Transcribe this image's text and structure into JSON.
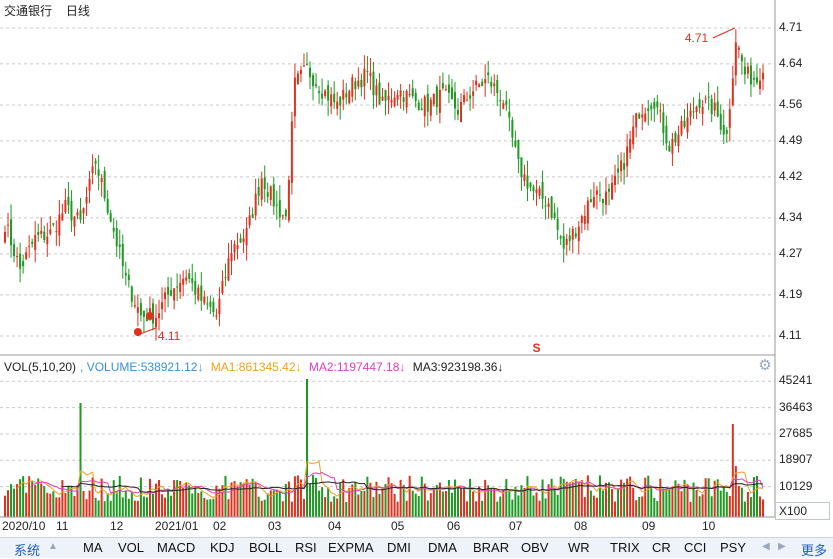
{
  "header": {
    "stock_name": "交通银行",
    "period": "日线"
  },
  "indicator_header": {
    "vol": "VOL(5,10,20)",
    "volume": ", VOLUME:538921.12↓",
    "ma1": "MA1:861345.42↓",
    "ma2": "MA2:1197447.18↓",
    "ma3": "MA3:923198.36↓"
  },
  "colors": {
    "up": "#e0301e",
    "down": "#1c9a22",
    "grid": "#c8c8c8",
    "volume_label": "#3b8fd9",
    "ma1": "#f0a020",
    "ma2": "#e040c0",
    "ma3": "#222222"
  },
  "price_axis": [
    "4.71",
    "4.64",
    "4.56",
    "4.49",
    "4.42",
    "4.34",
    "4.27",
    "4.19",
    "4.11"
  ],
  "volume_axis": [
    "45241",
    "36463",
    "27685",
    "18907",
    "10129"
  ],
  "volume_unit": "X100",
  "annotations": {
    "high": "4.71",
    "low": "4.11",
    "signal": "S"
  },
  "date_axis": [
    "2020/10",
    "11",
    "12",
    "2021/01",
    "02",
    "03",
    "04",
    "05",
    "06",
    "07",
    "08",
    "09",
    "10"
  ],
  "tabs": [
    "系统",
    "MA",
    "VOL",
    "MACD",
    "KDJ",
    "BOLL",
    "RSI",
    "EXPMA",
    "DMI",
    "DMA",
    "BRAR",
    "OBV",
    "WR",
    "TRIX",
    "CR",
    "CCI",
    "PSY"
  ],
  "more_label": "更多",
  "chart_data": {
    "type": "candlestick",
    "title": "交通银行 日线",
    "ylim": [
      4.07,
      4.74
    ],
    "volume_ylim": [
      0,
      48000
    ],
    "months": [
      "2020/10",
      "11",
      "12",
      "2021/01",
      "02",
      "03",
      "04",
      "05",
      "06",
      "07",
      "08",
      "09",
      "10"
    ],
    "close_anchors": [
      [
        0,
        4.33
      ],
      [
        5,
        4.24
      ],
      [
        10,
        4.3
      ],
      [
        15,
        4.31
      ],
      [
        20,
        4.36
      ],
      [
        25,
        4.33
      ],
      [
        30,
        4.45
      ],
      [
        35,
        4.34
      ],
      [
        40,
        4.22
      ],
      [
        45,
        4.15
      ],
      [
        50,
        4.15
      ],
      [
        55,
        4.2
      ],
      [
        60,
        4.23
      ],
      [
        65,
        4.18
      ],
      [
        70,
        4.15
      ],
      [
        75,
        4.28
      ],
      [
        80,
        4.31
      ],
      [
        85,
        4.42
      ],
      [
        90,
        4.36
      ],
      [
        93,
        4.34
      ],
      [
        96,
        4.6
      ],
      [
        100,
        4.63
      ],
      [
        105,
        4.59
      ],
      [
        110,
        4.56
      ],
      [
        115,
        4.6
      ],
      [
        120,
        4.62
      ],
      [
        125,
        4.56
      ],
      [
        130,
        4.59
      ],
      [
        135,
        4.57
      ],
      [
        140,
        4.56
      ],
      [
        145,
        4.58
      ],
      [
        150,
        4.55
      ],
      [
        155,
        4.59
      ],
      [
        160,
        4.61
      ],
      [
        165,
        4.57
      ],
      [
        170,
        4.44
      ],
      [
        175,
        4.39
      ],
      [
        180,
        4.37
      ],
      [
        185,
        4.28
      ],
      [
        190,
        4.33
      ],
      [
        195,
        4.39
      ],
      [
        200,
        4.38
      ],
      [
        205,
        4.45
      ],
      [
        210,
        4.55
      ],
      [
        215,
        4.57
      ],
      [
        220,
        4.48
      ],
      [
        225,
        4.52
      ],
      [
        230,
        4.57
      ],
      [
        235,
        4.55
      ],
      [
        239,
        4.5
      ],
      [
        242,
        4.69
      ],
      [
        245,
        4.62
      ],
      [
        249,
        4.61
      ],
      [
        251,
        4.64
      ]
    ],
    "volume_spikes": [
      [
        25,
        38000
      ],
      [
        58,
        12000
      ],
      [
        100,
        46000
      ],
      [
        241,
        31000
      ],
      [
        242,
        17000
      ]
    ]
  }
}
